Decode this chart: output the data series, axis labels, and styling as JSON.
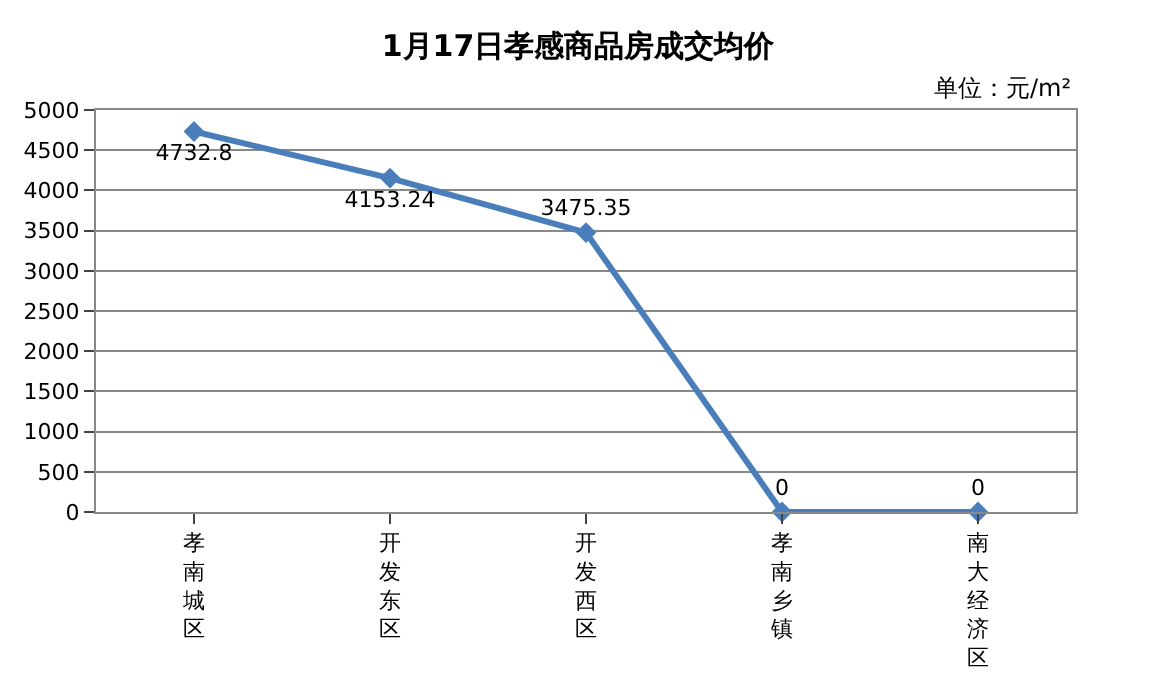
{
  "chart_data": {
    "type": "line",
    "title": "1月17日孝感商品房成交均价",
    "categories": [
      "孝南城区",
      "开发东区",
      "开发西区",
      "孝南乡镇",
      "南大经济区"
    ],
    "series": [
      {
        "color": "#4a7ebb",
        "values": [
          4732.8,
          4153.24,
          3475.35,
          0,
          0
        ]
      }
    ],
    "ylim": [
      0,
      5000
    ],
    "yticks": [
      0,
      500,
      1000,
      1500,
      2000,
      2500,
      3000,
      3500,
      4000,
      4500,
      5000
    ],
    "grid": "y",
    "marker": "diamond",
    "line_style": "solid",
    "data_labels": true,
    "legend": false,
    "annotations": [
      "单位：元/m²"
    ]
  }
}
